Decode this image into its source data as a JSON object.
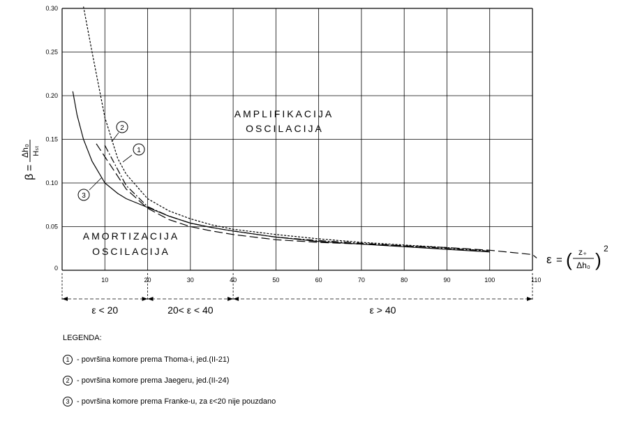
{
  "chart_data": {
    "type": "line",
    "xlim": [
      0,
      110
    ],
    "ylim": [
      0,
      0.3
    ],
    "x_ticks": [
      "10",
      "20",
      "30",
      "40",
      "50",
      "60",
      "70",
      "80",
      "90",
      "100",
      "110"
    ],
    "y_ticks": [
      "0",
      "0.05",
      "0.10",
      "0.15",
      "0.20",
      "0.25",
      "0.30"
    ],
    "y_axis_label": {
      "beta": "β",
      "equals": "=",
      "numerator": "Δh₀",
      "denominator": "Hₛₜ"
    },
    "x_axis_label": {
      "epsilon": "ε",
      "equals": "=",
      "numerator": "z₊",
      "denominator": "Δh₀",
      "exponent": "2"
    },
    "grid": true,
    "annotations": {
      "amplification_line1": "AMPLIFIKACIJA",
      "amplification_line2": "OSCILACIJA",
      "damping_line1": "AMORTIZACIJA",
      "damping_line2": "OSCILACIJA"
    },
    "curve_markers": [
      "1",
      "2",
      "3"
    ],
    "series": [
      {
        "style": "dash-dot",
        "marker": "1",
        "x": [
          10,
          15,
          20,
          25,
          30,
          35,
          40,
          50,
          60,
          70,
          80,
          90,
          100
        ],
        "y": [
          0.143,
          0.097,
          0.073,
          0.062,
          0.054,
          0.049,
          0.045,
          0.038,
          0.034,
          0.031,
          0.028,
          0.025,
          0.022
        ]
      },
      {
        "style": "dotted",
        "marker": "2",
        "x": [
          5,
          7,
          10,
          13,
          15,
          20,
          25,
          30,
          35,
          40,
          50,
          60,
          70,
          80,
          90,
          100
        ],
        "y": [
          0.31,
          0.25,
          0.175,
          0.128,
          0.11,
          0.082,
          0.068,
          0.059,
          0.052,
          0.047,
          0.041,
          0.036,
          0.032,
          0.029,
          0.026,
          0.022
        ]
      },
      {
        "style": "long-dash",
        "marker": "",
        "x": [
          8,
          10,
          15,
          20,
          25,
          30,
          35,
          40,
          50,
          60,
          70,
          80,
          90,
          100,
          110,
          111
        ],
        "y": [
          0.145,
          0.13,
          0.093,
          0.071,
          0.058,
          0.05,
          0.045,
          0.041,
          0.035,
          0.032,
          0.03,
          0.028,
          0.026,
          0.023,
          0.018,
          0.014
        ]
      },
      {
        "style": "solid",
        "marker": "3",
        "x": [
          2.5,
          3.5,
          5,
          7,
          10,
          13,
          15,
          20,
          25,
          30,
          35,
          40,
          50,
          60,
          70,
          80,
          90,
          100
        ],
        "y": [
          0.205,
          0.178,
          0.15,
          0.125,
          0.1,
          0.088,
          0.082,
          0.072,
          0.062,
          0.054,
          0.049,
          0.045,
          0.038,
          0.033,
          0.03,
          0.027,
          0.024,
          0.021
        ]
      }
    ],
    "ranges": [
      {
        "label": "ε < 20",
        "from": 0,
        "to": 20
      },
      {
        "label": "20< ε < 40",
        "from": 20,
        "to": 40
      },
      {
        "label": "ε > 40",
        "from": 40,
        "to": 110
      }
    ]
  },
  "legend": {
    "title": "LEGENDA:",
    "items": [
      {
        "num": "1",
        "text": "- površina komore prema Thoma-i, jed.(II-21)"
      },
      {
        "num": "2",
        "text": "- površina komore prema Jaegeru, jed.(II-24)"
      },
      {
        "num": "3",
        "text": "- površina komore prema Franke-u, za ε<20 nije pouzdano"
      }
    ]
  }
}
